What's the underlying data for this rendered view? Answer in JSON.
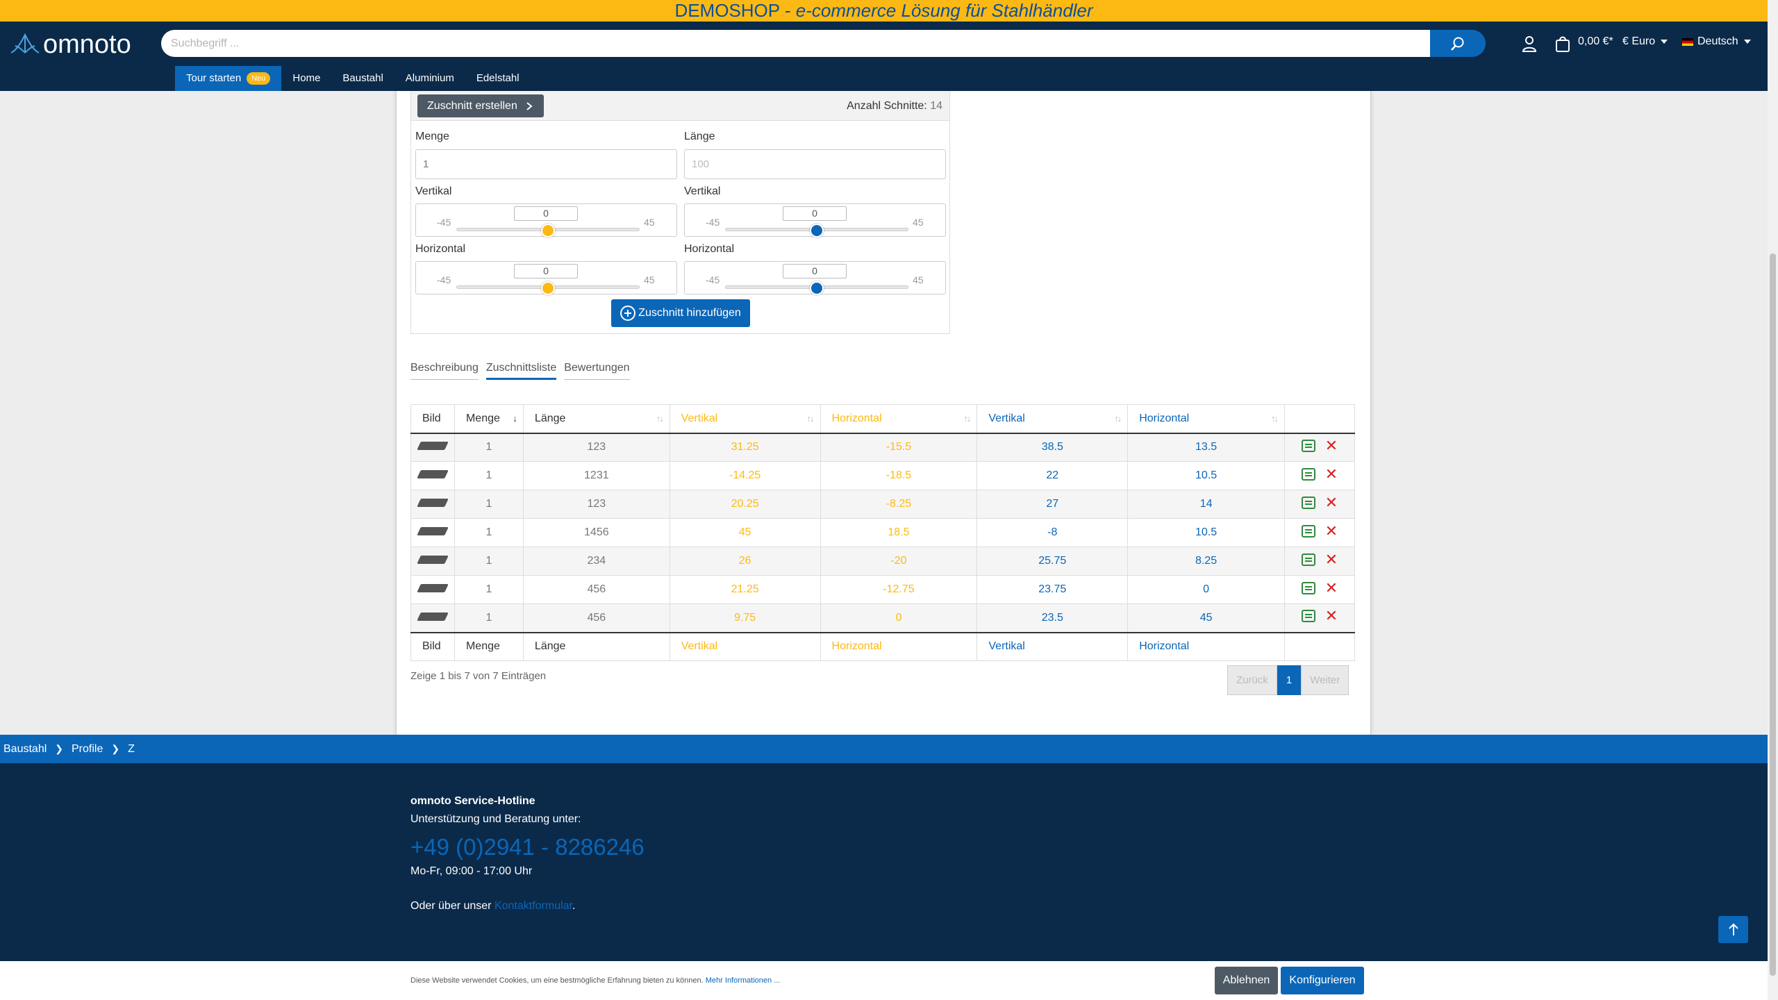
{
  "announcement": {
    "prefix": "DEMOSHOP - ",
    "italic": "e-commerce Lösung für Stahlhändler"
  },
  "header": {
    "logo_text": "omnoto",
    "search_placeholder": "Suchbegriff ...",
    "cart_amount": "0,00 €*",
    "currency": "€  Euro",
    "language": "Deutsch"
  },
  "nav": {
    "tour_label": "Tour starten",
    "tour_badge": "Neu",
    "items": [
      "Home",
      "Baustahl",
      "Aluminium",
      "Edelstahl"
    ]
  },
  "configurator": {
    "create_label": "Zuschnitt erstellen",
    "count_label": "Anzahl Schnitte:",
    "count_value": "14",
    "menge_label": "Menge",
    "menge_value": "1",
    "laenge_label": "Länge",
    "laenge_placeholder": "100",
    "vertikal_label": "Vertikal",
    "horizontal_label": "Horizontal",
    "slider_min": "-45",
    "slider_max": "45",
    "left_vertikal_value": "0",
    "left_horizontal_value": "0",
    "right_vertikal_value": "0",
    "right_horizontal_value": "0",
    "add_label": "Zuschnitt hinzufügen"
  },
  "tabs": [
    "Beschreibung",
    "Zuschnittsliste",
    "Bewertungen"
  ],
  "table": {
    "headers": [
      "Bild",
      "Menge",
      "Länge",
      "Vertikal",
      "Horizontal",
      "Vertikal",
      "Horizontal"
    ],
    "rows": [
      [
        "1",
        "123",
        "31.25",
        "-15.5",
        "38.5",
        "13.5"
      ],
      [
        "1",
        "1231",
        "-14.25",
        "-18.5",
        "22",
        "10.5"
      ],
      [
        "1",
        "123",
        "20.25",
        "-8.25",
        "27",
        "14"
      ],
      [
        "1",
        "1456",
        "45",
        "18.5",
        "-8",
        "10.5"
      ],
      [
        "1",
        "234",
        "26",
        "-20",
        "25.75",
        "8.25"
      ],
      [
        "1",
        "456",
        "21.25",
        "-12.75",
        "23.75",
        "0"
      ],
      [
        "1",
        "456",
        "9.75",
        "0",
        "23.5",
        "45"
      ]
    ]
  },
  "table_info": "Zeige 1 bis 7 von 7 Einträgen",
  "pager": {
    "prev": "Zurück",
    "page": "1",
    "next": "Weiter"
  },
  "breadcrumb": [
    "Baustahl",
    "Profile",
    "Z"
  ],
  "footer": {
    "title": "omnoto Service-Hotline",
    "subtitle": "Unterstützung und Beratung unter:",
    "phone": "+49 (0)2941 - 8286246",
    "hours": "Mo-Fr, 09:00 - 17:00 Uhr",
    "contact_prefix": "Oder über unser ",
    "contact_link": "Kontaktformular",
    "contact_suffix": "."
  },
  "cookie": {
    "text": "Diese Website verwendet Cookies, um eine bestmögliche Erfahrung bieten zu können. ",
    "link": "Mehr Informationen ...",
    "decline": "Ablehnen",
    "configure": "Konfigurieren"
  },
  "colors": {
    "accent": "#0b66b8",
    "yellow": "#fdb913",
    "navy": "#0b2a4a"
  }
}
